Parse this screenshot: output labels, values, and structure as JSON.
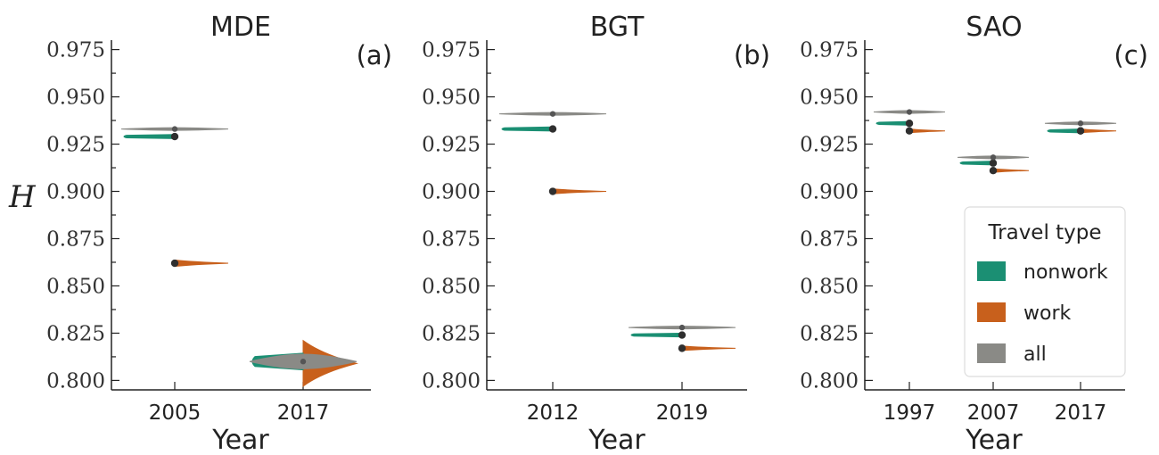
{
  "figure": {
    "ylabel": "H",
    "xlabel": "Year",
    "colors": {
      "nonwork": "#1b8f73",
      "work": "#c8601c",
      "all": "#8a8a86"
    }
  },
  "legend": {
    "title": "Travel type",
    "items": [
      {
        "key": "nonwork",
        "label": "nonwork"
      },
      {
        "key": "work",
        "label": "work"
      },
      {
        "key": "all",
        "label": "all"
      }
    ],
    "placement": "lower-right of panel (c)"
  },
  "chart_data": [
    {
      "type": "violin",
      "title": "MDE",
      "tag": "(a)",
      "xlabel": "Year",
      "ylabel": "H",
      "ylim": [
        0.795,
        0.98
      ],
      "yticks": [
        "0.800",
        "0.825",
        "0.850",
        "0.875",
        "0.900",
        "0.925",
        "0.950",
        "0.975"
      ],
      "categories": [
        "2005",
        "2017"
      ],
      "series": [
        {
          "name": "nonwork",
          "side": "left",
          "values": [
            0.929,
            0.81
          ],
          "spread": [
            0.001,
            0.004
          ]
        },
        {
          "name": "work",
          "side": "right",
          "values": [
            0.862,
            0.809
          ],
          "spread": [
            0.0015,
            0.011
          ]
        },
        {
          "name": "all",
          "side": "both",
          "values": [
            0.933,
            0.81
          ],
          "spread": [
            0.0004,
            0.0035
          ]
        }
      ]
    },
    {
      "type": "violin",
      "title": "BGT",
      "tag": "(b)",
      "xlabel": "Year",
      "ylim": [
        0.795,
        0.98
      ],
      "yticks": [
        "0.800",
        "0.825",
        "0.850",
        "0.875",
        "0.900",
        "0.925",
        "0.950",
        "0.975"
      ],
      "categories": [
        "2012",
        "2019"
      ],
      "series": [
        {
          "name": "nonwork",
          "side": "left",
          "values": [
            0.933,
            0.824
          ],
          "spread": [
            0.001,
            0.0009
          ]
        },
        {
          "name": "work",
          "side": "right",
          "values": [
            0.9,
            0.817
          ],
          "spread": [
            0.0012,
            0.0011
          ]
        },
        {
          "name": "all",
          "side": "both",
          "values": [
            0.941,
            0.828
          ],
          "spread": [
            0.0004,
            0.0004
          ]
        }
      ]
    },
    {
      "type": "violin",
      "title": "SAO",
      "tag": "(c)",
      "xlabel": "Year",
      "ylim": [
        0.795,
        0.98
      ],
      "yticks": [
        "0.800",
        "0.825",
        "0.850",
        "0.875",
        "0.900",
        "0.925",
        "0.950",
        "0.975"
      ],
      "categories": [
        "1997",
        "2007",
        "2017"
      ],
      "series": [
        {
          "name": "nonwork",
          "side": "left",
          "values": [
            0.936,
            0.915,
            0.932
          ],
          "spread": [
            0.0009,
            0.0009,
            0.0009
          ]
        },
        {
          "name": "work",
          "side": "right",
          "values": [
            0.932,
            0.911,
            0.932
          ],
          "spread": [
            0.0009,
            0.0009,
            0.0009
          ]
        },
        {
          "name": "all",
          "side": "both",
          "values": [
            0.942,
            0.918,
            0.936
          ],
          "spread": [
            0.0004,
            0.0004,
            0.0004
          ]
        }
      ]
    }
  ]
}
